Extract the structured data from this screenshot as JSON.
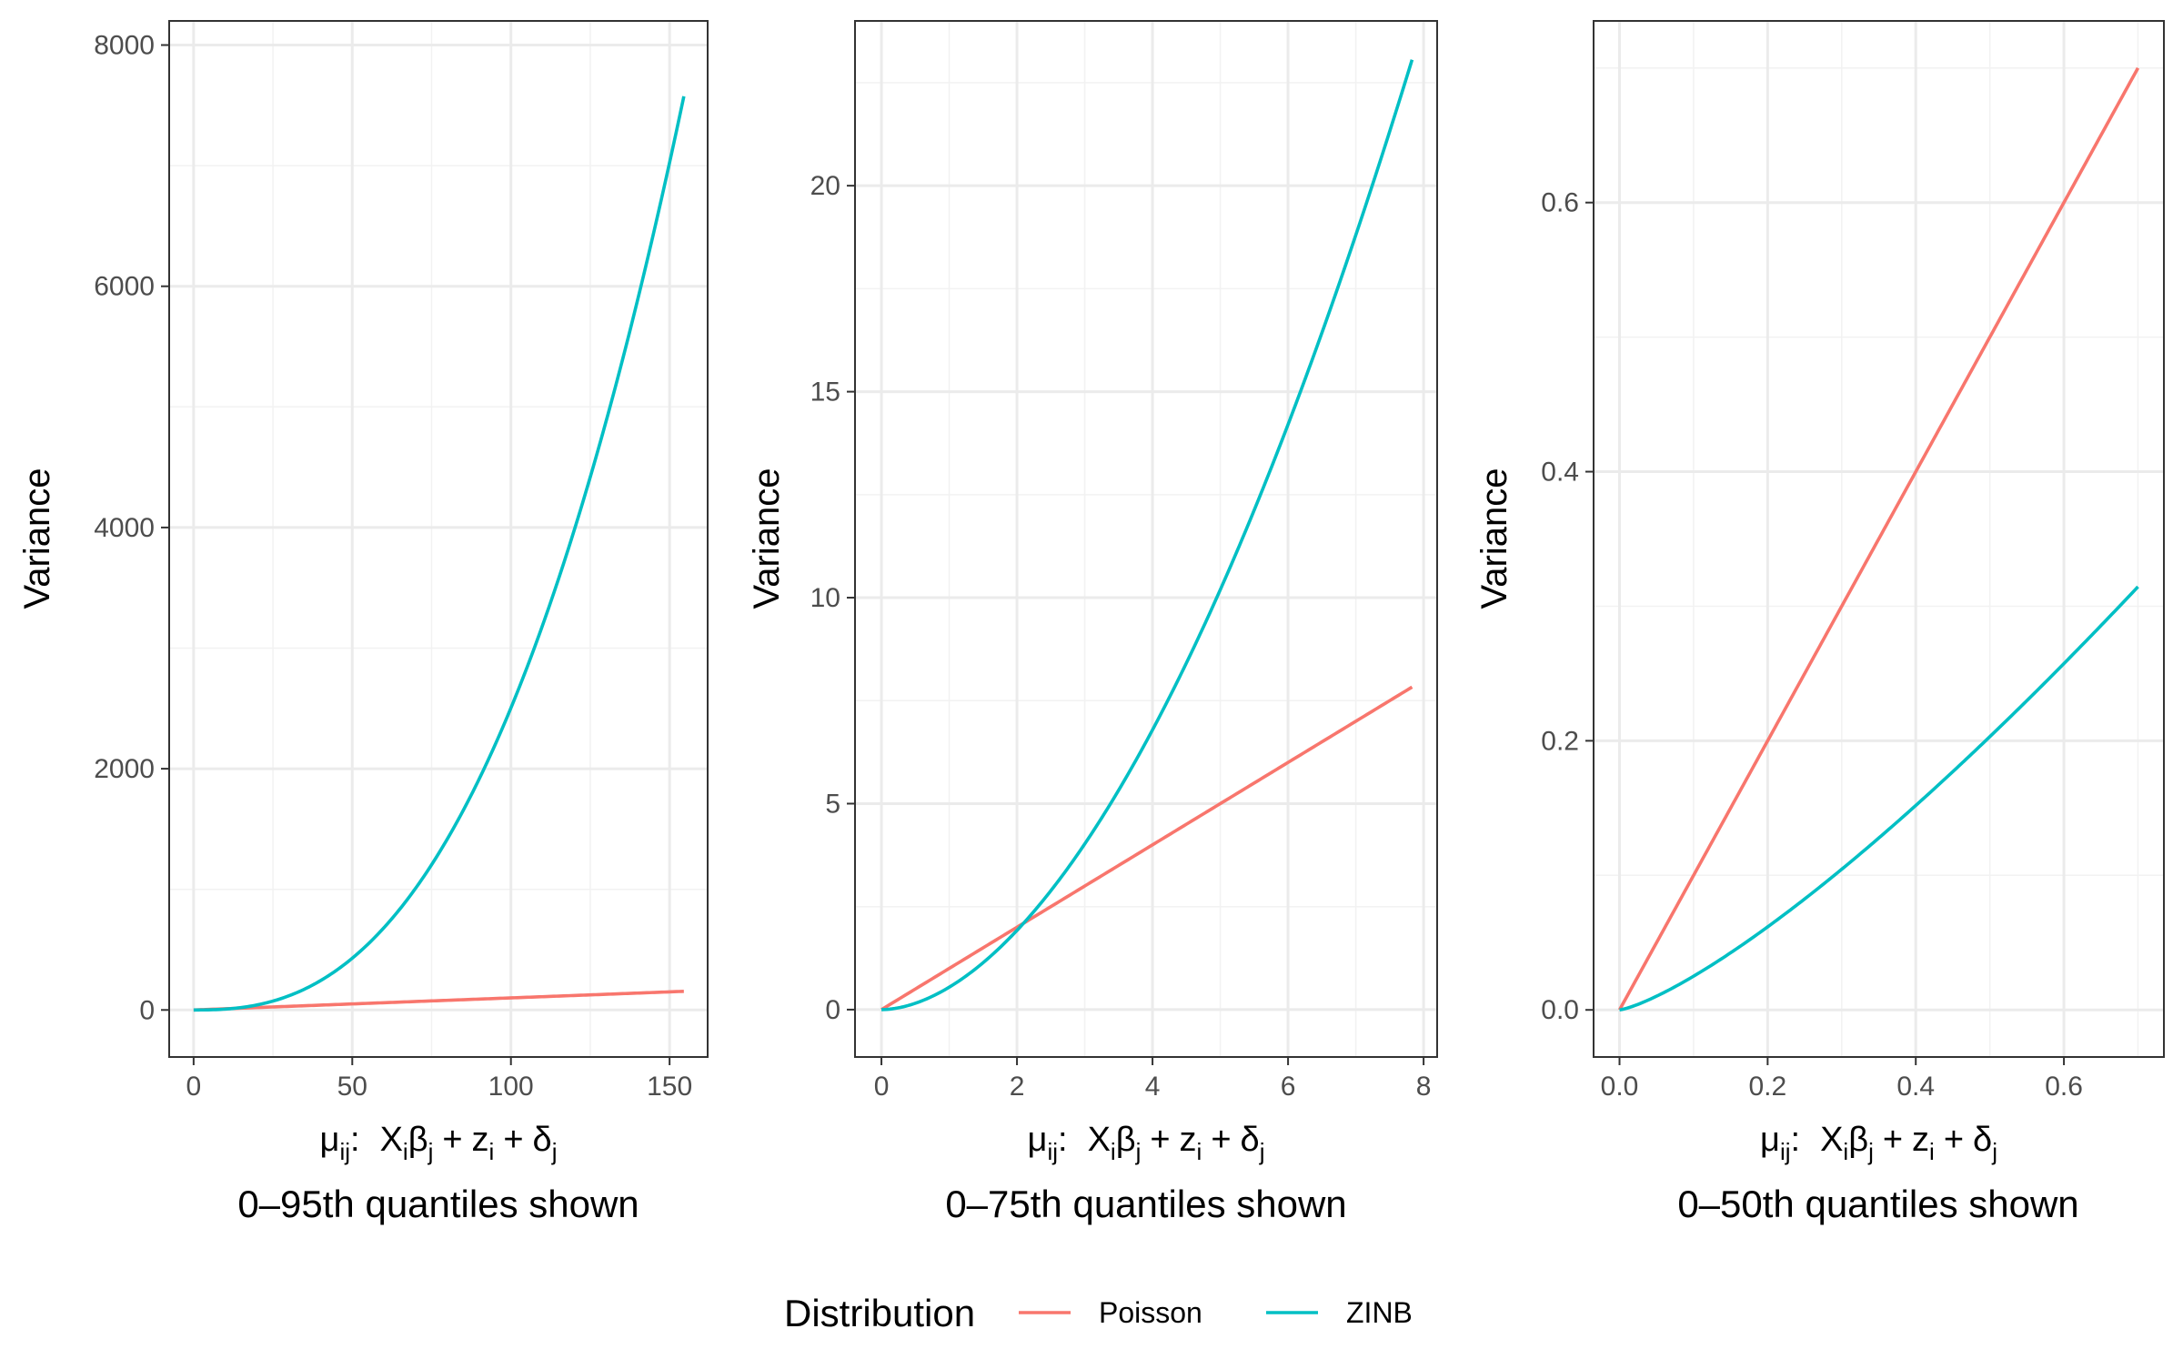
{
  "legend": {
    "title": "Distribution",
    "position": "bottom",
    "items": [
      {
        "name": "Poisson",
        "color": "#F8766D"
      },
      {
        "name": "ZINB",
        "color": "#00BFC4"
      }
    ]
  },
  "chart_data": [
    {
      "type": "line",
      "subtitle": "0–95th quantiles shown",
      "xlabel": {
        "mu": "μ",
        "mu_sub": "ij",
        "colon": ":",
        "X": "X",
        "X_sub": "i",
        "beta": "β",
        "beta_sub": "j",
        "plus1": "+",
        "z": "z",
        "z_sub": "i",
        "plus2": "+",
        "delta": "δ",
        "delta_sub": "j"
      },
      "ylabel": "Variance",
      "xlim": [
        -7.7,
        162
      ],
      "ylim": [
        -390,
        8200
      ],
      "xticks": [
        0,
        50,
        100,
        150
      ],
      "xtick_labels": [
        "0",
        "50",
        "100",
        "150"
      ],
      "yticks": [
        0,
        2000,
        4000,
        6000,
        8000
      ],
      "ytick_labels": [
        "0",
        "2000",
        "4000",
        "6000",
        "8000"
      ],
      "grid": true,
      "series": [
        {
          "name": "Poisson",
          "kind": "linear",
          "x_range": [
            0,
            154.5
          ],
          "params": {
            "a": 0,
            "b": 1
          }
        },
        {
          "name": "ZINB",
          "kind": "power",
          "x_range": [
            0,
            154.5
          ],
          "params": {
            "a": 0.0204,
            "b": 2.5445
          }
        }
      ]
    },
    {
      "type": "line",
      "subtitle": "0–75th quantiles shown",
      "xlabel": {
        "mu": "μ",
        "mu_sub": "ij",
        "colon": ":",
        "X": "X",
        "X_sub": "i",
        "beta": "β",
        "beta_sub": "j",
        "plus1": "+",
        "z": "z",
        "z_sub": "i",
        "plus2": "+",
        "delta": "δ",
        "delta_sub": "j"
      },
      "ylabel": "Variance",
      "xlim": [
        -0.39,
        8.2
      ],
      "ylim": [
        -1.15,
        24.0
      ],
      "xticks": [
        0,
        2,
        4,
        6,
        8
      ],
      "xtick_labels": [
        "0",
        "2",
        "4",
        "6",
        "8"
      ],
      "yticks": [
        0,
        5,
        10,
        15,
        20
      ],
      "ytick_labels": [
        "0",
        "5",
        "10",
        "15",
        "20"
      ],
      "grid": true,
      "series": [
        {
          "name": "Poisson",
          "kind": "linear",
          "x_range": [
            0,
            7.83
          ],
          "params": {
            "a": 0,
            "b": 1
          }
        },
        {
          "name": "ZINB",
          "kind": "power",
          "x_range": [
            0,
            7.83
          ],
          "params": {
            "a": 0.5447,
            "b": 1.82
          }
        }
      ]
    },
    {
      "type": "line",
      "subtitle": "0–50th quantiles shown",
      "xlabel": {
        "mu": "μ",
        "mu_sub": "ij",
        "colon": ":",
        "X": "X",
        "X_sub": "i",
        "beta": "β",
        "beta_sub": "j",
        "plus1": "+",
        "z": "z",
        "z_sub": "i",
        "plus2": "+",
        "delta": "δ",
        "delta_sub": "j"
      },
      "ylabel": "Variance",
      "xlim": [
        -0.035,
        0.735
      ],
      "ylim": [
        -0.035,
        0.735
      ],
      "xticks": [
        0,
        0.2,
        0.4,
        0.6
      ],
      "xtick_labels": [
        "0.0",
        "0.2",
        "0.4",
        "0.6"
      ],
      "yticks": [
        0,
        0.2,
        0.4,
        0.6
      ],
      "ytick_labels": [
        "0.0",
        "0.2",
        "0.4",
        "0.6"
      ],
      "grid": true,
      "series": [
        {
          "name": "Poisson",
          "kind": "linear",
          "x_range": [
            0,
            0.7
          ],
          "params": {
            "a": 0,
            "b": 1
          }
        },
        {
          "name": "ZINB",
          "kind": "power",
          "x_range": [
            0,
            0.7
          ],
          "params": {
            "a": 0.5,
            "b": 1.3
          }
        }
      ]
    }
  ]
}
